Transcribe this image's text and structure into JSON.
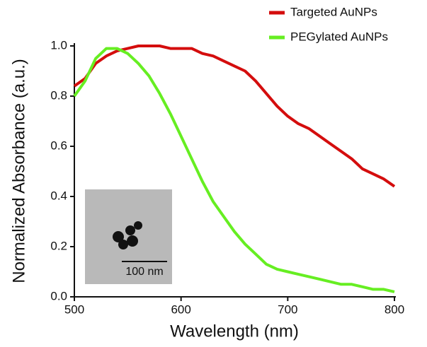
{
  "chart_data": {
    "type": "line",
    "xlabel": "Wavelength (nm)",
    "ylabel": "Normalized Absorbance (a.u.)",
    "x": [
      500,
      510,
      520,
      530,
      540,
      550,
      560,
      570,
      580,
      590,
      600,
      610,
      620,
      630,
      640,
      650,
      660,
      670,
      680,
      690,
      700,
      710,
      720,
      730,
      740,
      750,
      760,
      770,
      780,
      790,
      800
    ],
    "series": [
      {
        "name": "Targeted AuNPs",
        "color": "#d40d0d",
        "values": [
          0.84,
          0.87,
          0.93,
          0.96,
          0.98,
          0.99,
          1.0,
          1.0,
          1.0,
          0.99,
          0.99,
          0.99,
          0.97,
          0.96,
          0.94,
          0.92,
          0.9,
          0.86,
          0.81,
          0.76,
          0.72,
          0.69,
          0.67,
          0.64,
          0.61,
          0.58,
          0.55,
          0.51,
          0.49,
          0.47,
          0.44
        ]
      },
      {
        "name": "PEGylated AuNPs",
        "color": "#66ee22",
        "values": [
          0.8,
          0.86,
          0.95,
          0.99,
          0.99,
          0.97,
          0.93,
          0.88,
          0.81,
          0.73,
          0.64,
          0.55,
          0.46,
          0.38,
          0.32,
          0.26,
          0.21,
          0.17,
          0.13,
          0.11,
          0.1,
          0.09,
          0.08,
          0.07,
          0.06,
          0.05,
          0.05,
          0.04,
          0.03,
          0.03,
          0.02
        ]
      }
    ],
    "xlim": [
      500,
      800
    ],
    "xticks": [
      500,
      600,
      700,
      800
    ],
    "ylim": [
      0,
      1
    ],
    "yticks": [
      {
        "value": 0,
        "label": "0.0"
      },
      0.2,
      0.4,
      0.6,
      0.8,
      {
        "value": 1,
        "label": "1.0"
      }
    ],
    "inset_scale_label": "100 nm"
  }
}
